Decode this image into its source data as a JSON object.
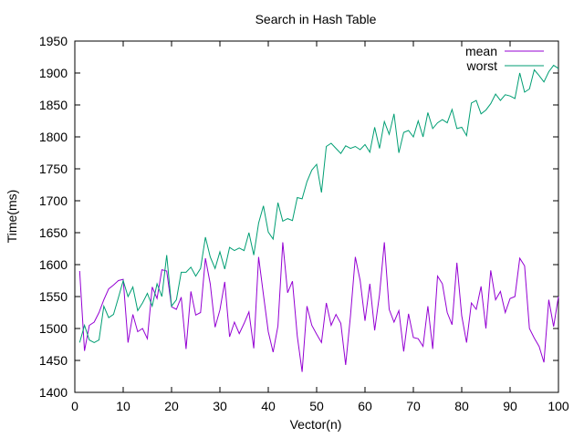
{
  "chart_data": {
    "type": "line",
    "title": "Search in Hash Table",
    "xlabel": "Vector(n)",
    "ylabel": "Time(ms)",
    "xlim": [
      0,
      100
    ],
    "ylim": [
      1400,
      1950
    ],
    "xticks": [
      0,
      10,
      20,
      30,
      40,
      50,
      60,
      70,
      80,
      90,
      100
    ],
    "yticks": [
      1400,
      1450,
      1500,
      1550,
      1600,
      1650,
      1700,
      1750,
      1800,
      1850,
      1900,
      1950
    ],
    "grid": false,
    "legend_position": "top-right",
    "x": [
      1,
      2,
      3,
      4,
      5,
      6,
      7,
      8,
      9,
      10,
      11,
      12,
      13,
      14,
      15,
      16,
      17,
      18,
      19,
      20,
      21,
      22,
      23,
      24,
      25,
      26,
      27,
      28,
      29,
      30,
      31,
      32,
      33,
      34,
      35,
      36,
      37,
      38,
      39,
      40,
      41,
      42,
      43,
      44,
      45,
      46,
      47,
      48,
      49,
      50,
      51,
      52,
      53,
      54,
      55,
      56,
      57,
      58,
      59,
      60,
      61,
      62,
      63,
      64,
      65,
      66,
      67,
      68,
      69,
      70,
      71,
      72,
      73,
      74,
      75,
      76,
      77,
      78,
      79,
      80,
      81,
      82,
      83,
      84,
      85,
      86,
      87,
      88,
      89,
      90,
      91,
      92,
      93,
      94,
      95,
      96,
      97,
      98,
      99,
      100
    ],
    "series": [
      {
        "name": "mean",
        "color": "#9400d3",
        "values": [
          1590,
          1465,
          1505,
          1510,
          1525,
          1545,
          1562,
          1568,
          1575,
          1577,
          1478,
          1522,
          1495,
          1500,
          1484,
          1565,
          1547,
          1592,
          1590,
          1534,
          1530,
          1549,
          1468,
          1558,
          1521,
          1525,
          1610,
          1570,
          1502,
          1529,
          1573,
          1487,
          1510,
          1492,
          1508,
          1526,
          1469,
          1612,
          1553,
          1495,
          1463,
          1504,
          1635,
          1556,
          1574,
          1488,
          1432,
          1535,
          1505,
          1491,
          1478,
          1540,
          1505,
          1522,
          1508,
          1443,
          1520,
          1612,
          1575,
          1512,
          1570,
          1497,
          1553,
          1635,
          1530,
          1510,
          1528,
          1464,
          1523,
          1486,
          1484,
          1472,
          1535,
          1468,
          1582,
          1570,
          1525,
          1506,
          1603,
          1520,
          1478,
          1540,
          1530,
          1566,
          1500,
          1591,
          1545,
          1558,
          1525,
          1547,
          1550,
          1610,
          1598,
          1500,
          1485,
          1472,
          1447,
          1545,
          1503,
          1550
        ]
      },
      {
        "name": "worst",
        "color": "#009e73",
        "values": [
          1478,
          1505,
          1482,
          1478,
          1482,
          1535,
          1517,
          1522,
          1548,
          1575,
          1550,
          1565,
          1528,
          1540,
          1555,
          1535,
          1570,
          1550,
          1615,
          1535,
          1545,
          1588,
          1588,
          1596,
          1582,
          1594,
          1643,
          1612,
          1594,
          1620,
          1593,
          1627,
          1622,
          1626,
          1622,
          1650,
          1615,
          1665,
          1692,
          1651,
          1640,
          1697,
          1668,
          1672,
          1669,
          1705,
          1703,
          1730,
          1748,
          1757,
          1713,
          1785,
          1790,
          1782,
          1774,
          1786,
          1782,
          1785,
          1780,
          1788,
          1776,
          1815,
          1782,
          1824,
          1804,
          1836,
          1775,
          1807,
          1810,
          1800,
          1825,
          1800,
          1838,
          1813,
          1822,
          1827,
          1822,
          1843,
          1813,
          1815,
          1802,
          1853,
          1857,
          1836,
          1842,
          1852,
          1867,
          1857,
          1866,
          1864,
          1860,
          1900,
          1870,
          1875,
          1905,
          1896,
          1886,
          1902,
          1912,
          1907
        ]
      }
    ]
  }
}
